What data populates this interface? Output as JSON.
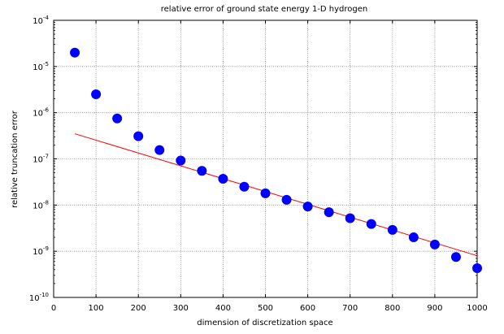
{
  "chart_data": {
    "type": "scatter",
    "title": "relative error of ground state energy 1-D hydrogen",
    "xlabel": "dimension of discretization space",
    "ylabel": "relative truncation error",
    "xlim": [
      0,
      1000
    ],
    "ylim": [
      1e-10,
      0.0001
    ],
    "yscale": "log",
    "grid": true,
    "x_ticks": [
      "0",
      "100",
      "200",
      "300",
      "400",
      "500",
      "600",
      "700",
      "800",
      "900",
      "1000"
    ],
    "y_ticks": [
      {
        "base": "10",
        "exp": "-10"
      },
      {
        "base": "10",
        "exp": "-9"
      },
      {
        "base": "10",
        "exp": "-8"
      },
      {
        "base": "10",
        "exp": "-7"
      },
      {
        "base": "10",
        "exp": "-6"
      },
      {
        "base": "10",
        "exp": "-5"
      },
      {
        "base": "10",
        "exp": "-4"
      }
    ],
    "series": [
      {
        "kind": "points",
        "color": "#0000ff",
        "x": [
          50,
          100,
          150,
          200,
          250,
          300,
          350,
          400,
          450,
          500,
          550,
          600,
          650,
          700,
          750,
          800,
          850,
          900,
          950,
          1000
        ],
        "y": [
          2e-05,
          2.5e-06,
          7.5e-07,
          3.1e-07,
          1.55e-07,
          9.2e-08,
          5.5e-08,
          3.7e-08,
          2.5e-08,
          1.8e-08,
          1.3e-08,
          9.3e-09,
          7e-09,
          5.2e-09,
          3.9e-09,
          2.9e-09,
          2e-09,
          1.4e-09,
          7.5e-10,
          4.3e-10
        ]
      },
      {
        "kind": "line",
        "color": "#ff0000",
        "x": [
          50,
          1000
        ],
        "y": [
          3.5e-07,
          8e-10
        ]
      }
    ]
  }
}
